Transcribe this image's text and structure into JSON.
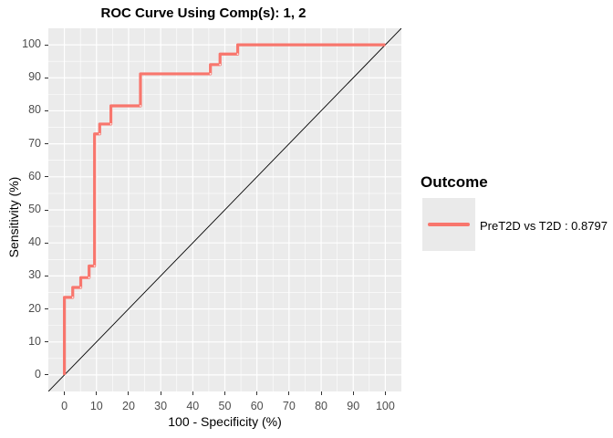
{
  "chart_data": {
    "type": "line",
    "subtype": "roc-step-curve",
    "title": "ROC Curve Using Comp(s): 1, 2",
    "xlabel": "100 - Specificity (%)",
    "ylabel": "Sensitivity (%)",
    "xlim": [
      -5,
      105
    ],
    "ylim": [
      -5,
      105
    ],
    "xticks": [
      0,
      10,
      20,
      30,
      40,
      50,
      60,
      70,
      80,
      90,
      100
    ],
    "yticks": [
      0,
      10,
      20,
      30,
      40,
      50,
      60,
      70,
      80,
      90,
      100
    ],
    "grid": {
      "major": true,
      "minor": true,
      "color": "#FFFFFF"
    },
    "panel_background": "#EBEBEB",
    "reference_line": {
      "from": [
        -5,
        -5
      ],
      "to": [
        105,
        105
      ],
      "color": "#000000",
      "meaning": "chance diagonal"
    },
    "series": [
      {
        "name": "PreT2D vs T2D : 0.8797",
        "auc": 0.8797,
        "color": "#F8766D",
        "step_vertices": [
          [
            0,
            0
          ],
          [
            0,
            23.5
          ],
          [
            2.6,
            23.5
          ],
          [
            2.6,
            26.5
          ],
          [
            5.1,
            26.5
          ],
          [
            5.1,
            29.5
          ],
          [
            7.7,
            29.5
          ],
          [
            7.7,
            33
          ],
          [
            9.4,
            33
          ],
          [
            9.4,
            73
          ],
          [
            11,
            73
          ],
          [
            11,
            76
          ],
          [
            14.5,
            76
          ],
          [
            14.5,
            81.5
          ],
          [
            23.7,
            81.5
          ],
          [
            23.7,
            91.2
          ],
          [
            45.5,
            91.2
          ],
          [
            45.5,
            94
          ],
          [
            48.5,
            94
          ],
          [
            48.5,
            97.2
          ],
          [
            54,
            97.2
          ],
          [
            54,
            100
          ],
          [
            100,
            100
          ]
        ],
        "marker_points": [
          [
            2.6,
            23.5
          ],
          [
            5.1,
            26.5
          ],
          [
            7.7,
            29.5
          ],
          [
            9.4,
            33
          ],
          [
            11,
            73
          ],
          [
            14.5,
            76
          ],
          [
            23.7,
            81.5
          ],
          [
            45.5,
            91.2
          ],
          [
            48.5,
            94
          ],
          [
            54,
            97.2
          ]
        ]
      }
    ],
    "legend": {
      "title": "Outcome",
      "position": "right",
      "entries": [
        {
          "label": "PreT2D vs T2D : 0.8797",
          "color": "#F8766D"
        }
      ]
    }
  },
  "colors": {
    "curve": "#F8766D",
    "panel": "#EBEBEB",
    "gridline": "#FFFFFF",
    "diagonal": "#000000",
    "tick_text": "#4D4D4D",
    "tick_mark": "#333333",
    "legend_key_bg": "#EAEAEA"
  }
}
